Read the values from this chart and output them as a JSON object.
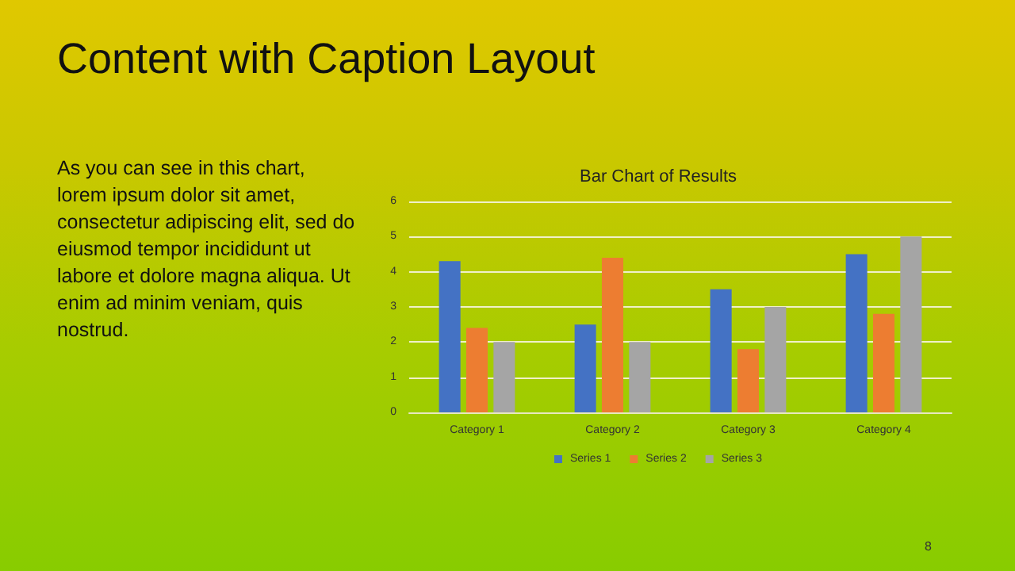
{
  "chart_data": {
    "type": "bar",
    "title": "Bar Chart of Results",
    "categories": [
      "Category 1",
      "Category 2",
      "Category 3",
      "Category 4"
    ],
    "series": [
      {
        "name": "Series 1",
        "color": "#4472c4",
        "values": [
          4.3,
          2.5,
          3.5,
          4.5
        ]
      },
      {
        "name": "Series 2",
        "color": "#ed7d31",
        "values": [
          2.4,
          4.4,
          1.8,
          2.8
        ]
      },
      {
        "name": "Series 3",
        "color": "#a5a5a5",
        "values": [
          2,
          2,
          3,
          5
        ]
      }
    ],
    "ylim": [
      0,
      6
    ],
    "yticks": [
      0,
      1,
      2,
      3,
      4,
      5,
      6
    ],
    "grid": "y",
    "legend": "bottom",
    "annotations": [
      "Content with Caption Layout",
      "As you can see in this chart, lorem ipsum dolor sit amet, consectetur adipiscing elit, sed do eiusmod tempor incididunt ut labore et dolore magna aliqua. Ut enim ad minim veniam, quis nostrud.",
      "8"
    ]
  }
}
